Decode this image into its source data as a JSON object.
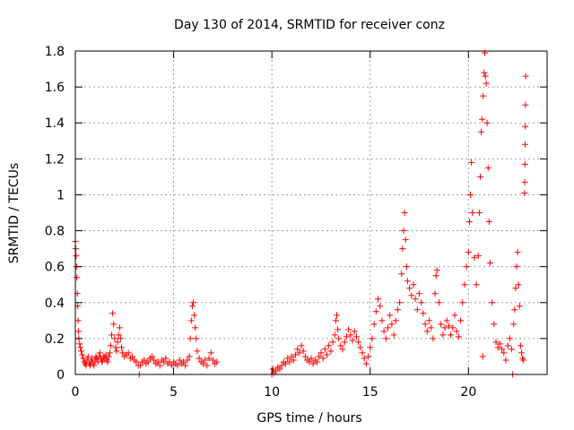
{
  "chart_data": {
    "type": "scatter",
    "title": "Day 130 of 2014, SRMTID for receiver conz",
    "xlabel": "GPS time / hours",
    "ylabel": "SRMTID / TECUs",
    "xlim": [
      0,
      24
    ],
    "ylim": [
      0,
      1.8
    ],
    "x_ticks": [
      0,
      5,
      10,
      15,
      20
    ],
    "x_tick_labels": [
      "0",
      "5",
      "10",
      "15",
      "20"
    ],
    "y_ticks": [
      0,
      0.2,
      0.4,
      0.6,
      0.8,
      1,
      1.2,
      1.4,
      1.6,
      1.8
    ],
    "y_tick_labels": [
      "0",
      "0.2",
      "0.4",
      "0.6",
      "0.8",
      "1",
      "1.2",
      "1.4",
      "1.6",
      "1.8"
    ],
    "grid": true,
    "marker": "+",
    "colors": {
      "series": "#ff0000",
      "grid": "#a0a0a0",
      "axis": "#000000"
    },
    "series": [
      {
        "name": "SRMTID",
        "points": [
          [
            0.0,
            0.74
          ],
          [
            0.02,
            0.7
          ],
          [
            0.04,
            0.66
          ],
          [
            0.06,
            0.6
          ],
          [
            0.08,
            0.54
          ],
          [
            0.1,
            0.45
          ],
          [
            0.12,
            0.38
          ],
          [
            0.14,
            0.3
          ],
          [
            0.16,
            0.24
          ],
          [
            0.18,
            0.2
          ],
          [
            0.22,
            0.17
          ],
          [
            0.26,
            0.15
          ],
          [
            0.3,
            0.13
          ],
          [
            0.35,
            0.11
          ],
          [
            0.4,
            0.09
          ],
          [
            0.45,
            0.07
          ],
          [
            0.5,
            0.06
          ],
          [
            0.55,
            0.05
          ],
          [
            0.6,
            0.08
          ],
          [
            0.65,
            0.1
          ],
          [
            0.7,
            0.06
          ],
          [
            0.75,
            0.05
          ],
          [
            0.8,
            0.07
          ],
          [
            0.85,
            0.09
          ],
          [
            0.9,
            0.06
          ],
          [
            0.95,
            0.05
          ],
          [
            1.0,
            0.08
          ],
          [
            1.05,
            0.1
          ],
          [
            1.1,
            0.09
          ],
          [
            1.15,
            0.07
          ],
          [
            1.2,
            0.1
          ],
          [
            1.25,
            0.12
          ],
          [
            1.3,
            0.09
          ],
          [
            1.35,
            0.07
          ],
          [
            1.4,
            0.08
          ],
          [
            1.45,
            0.1
          ],
          [
            1.5,
            0.09
          ],
          [
            1.55,
            0.11
          ],
          [
            1.6,
            0.08
          ],
          [
            1.65,
            0.07
          ],
          [
            1.7,
            0.1
          ],
          [
            1.75,
            0.12
          ],
          [
            1.8,
            0.16
          ],
          [
            1.85,
            0.22
          ],
          [
            1.9,
            0.34
          ],
          [
            1.95,
            0.28
          ],
          [
            2.0,
            0.2
          ],
          [
            2.05,
            0.15
          ],
          [
            2.1,
            0.13
          ],
          [
            2.15,
            0.18
          ],
          [
            2.2,
            0.22
          ],
          [
            2.25,
            0.26
          ],
          [
            2.3,
            0.2
          ],
          [
            2.35,
            0.15
          ],
          [
            2.4,
            0.12
          ],
          [
            2.5,
            0.1
          ],
          [
            2.6,
            0.11
          ],
          [
            2.7,
            0.12
          ],
          [
            2.8,
            0.09
          ],
          [
            2.9,
            0.1
          ],
          [
            3.0,
            0.08
          ],
          [
            3.1,
            0.07
          ],
          [
            3.2,
            0.05
          ],
          [
            3.25,
            0.0
          ],
          [
            3.3,
            0.05
          ],
          [
            3.4,
            0.07
          ],
          [
            3.5,
            0.08
          ],
          [
            3.6,
            0.06
          ],
          [
            3.7,
            0.07
          ],
          [
            3.8,
            0.09
          ],
          [
            3.9,
            0.1
          ],
          [
            4.0,
            0.08
          ],
          [
            4.1,
            0.06
          ],
          [
            4.2,
            0.07
          ],
          [
            4.3,
            0.05
          ],
          [
            4.4,
            0.08
          ],
          [
            4.5,
            0.07
          ],
          [
            4.6,
            0.09
          ],
          [
            4.7,
            0.06
          ],
          [
            4.8,
            0.07
          ],
          [
            4.9,
            0.05
          ],
          [
            5.0,
            0.07
          ],
          [
            5.1,
            0.06
          ],
          [
            5.2,
            0.05
          ],
          [
            5.3,
            0.08
          ],
          [
            5.4,
            0.06
          ],
          [
            5.5,
            0.07
          ],
          [
            5.6,
            0.05
          ],
          [
            5.7,
            0.08
          ],
          [
            5.8,
            0.1
          ],
          [
            5.85,
            0.2
          ],
          [
            5.9,
            0.3
          ],
          [
            5.95,
            0.38
          ],
          [
            6.0,
            0.4
          ],
          [
            6.05,
            0.33
          ],
          [
            6.1,
            0.26
          ],
          [
            6.15,
            0.2
          ],
          [
            6.2,
            0.13
          ],
          [
            6.3,
            0.09
          ],
          [
            6.4,
            0.07
          ],
          [
            6.5,
            0.06
          ],
          [
            6.6,
            0.08
          ],
          [
            6.7,
            0.05
          ],
          [
            6.8,
            0.09
          ],
          [
            6.9,
            0.12
          ],
          [
            7.0,
            0.08
          ],
          [
            7.1,
            0.06
          ],
          [
            7.2,
            0.07
          ],
          [
            10.0,
            0.0
          ],
          [
            10.05,
            0.03
          ],
          [
            10.1,
            0.01
          ],
          [
            10.2,
            0.02
          ],
          [
            10.3,
            0.04
          ],
          [
            10.4,
            0.03
          ],
          [
            10.5,
            0.05
          ],
          [
            10.6,
            0.07
          ],
          [
            10.7,
            0.06
          ],
          [
            10.8,
            0.09
          ],
          [
            10.9,
            0.07
          ],
          [
            11.0,
            0.1
          ],
          [
            11.1,
            0.08
          ],
          [
            11.2,
            0.11
          ],
          [
            11.3,
            0.14
          ],
          [
            11.4,
            0.12
          ],
          [
            11.5,
            0.16
          ],
          [
            11.6,
            0.13
          ],
          [
            11.7,
            0.1
          ],
          [
            11.8,
            0.08
          ],
          [
            11.9,
            0.07
          ],
          [
            12.0,
            0.09
          ],
          [
            12.1,
            0.06
          ],
          [
            12.2,
            0.08
          ],
          [
            12.3,
            0.07
          ],
          [
            12.4,
            0.1
          ],
          [
            12.5,
            0.12
          ],
          [
            12.6,
            0.09
          ],
          [
            12.7,
            0.14
          ],
          [
            12.8,
            0.11
          ],
          [
            12.9,
            0.16
          ],
          [
            13.0,
            0.13
          ],
          [
            13.1,
            0.18
          ],
          [
            13.2,
            0.22
          ],
          [
            13.25,
            0.3
          ],
          [
            13.3,
            0.33
          ],
          [
            13.35,
            0.25
          ],
          [
            13.4,
            0.2
          ],
          [
            13.5,
            0.16
          ],
          [
            13.6,
            0.14
          ],
          [
            13.7,
            0.18
          ],
          [
            13.8,
            0.21
          ],
          [
            13.9,
            0.25
          ],
          [
            14.0,
            0.22
          ],
          [
            14.1,
            0.19
          ],
          [
            14.2,
            0.24
          ],
          [
            14.3,
            0.21
          ],
          [
            14.4,
            0.18
          ],
          [
            14.5,
            0.15
          ],
          [
            14.6,
            0.12
          ],
          [
            14.7,
            0.09
          ],
          [
            14.8,
            0.06
          ],
          [
            14.9,
            0.1
          ],
          [
            15.0,
            0.15
          ],
          [
            15.1,
            0.2
          ],
          [
            15.2,
            0.28
          ],
          [
            15.3,
            0.35
          ],
          [
            15.4,
            0.42
          ],
          [
            15.5,
            0.38
          ],
          [
            15.6,
            0.3
          ],
          [
            15.7,
            0.24
          ],
          [
            15.8,
            0.2
          ],
          [
            15.9,
            0.26
          ],
          [
            16.0,
            0.33
          ],
          [
            16.1,
            0.28
          ],
          [
            16.2,
            0.22
          ],
          [
            16.3,
            0.3
          ],
          [
            16.4,
            0.36
          ],
          [
            16.5,
            0.4
          ],
          [
            16.6,
            0.56
          ],
          [
            16.65,
            0.7
          ],
          [
            16.7,
            0.8
          ],
          [
            16.75,
            0.9
          ],
          [
            16.8,
            0.75
          ],
          [
            16.85,
            0.6
          ],
          [
            16.9,
            0.52
          ],
          [
            17.0,
            0.48
          ],
          [
            17.1,
            0.44
          ],
          [
            17.2,
            0.5
          ],
          [
            17.3,
            0.42
          ],
          [
            17.4,
            0.36
          ],
          [
            17.5,
            0.45
          ],
          [
            17.6,
            0.4
          ],
          [
            17.7,
            0.34
          ],
          [
            17.8,
            0.28
          ],
          [
            17.9,
            0.24
          ],
          [
            18.0,
            0.3
          ],
          [
            18.1,
            0.26
          ],
          [
            18.2,
            0.2
          ],
          [
            18.3,
            0.45
          ],
          [
            18.35,
            0.55
          ],
          [
            18.4,
            0.58
          ],
          [
            18.5,
            0.4
          ],
          [
            18.6,
            0.28
          ],
          [
            18.7,
            0.22
          ],
          [
            18.8,
            0.26
          ],
          [
            18.9,
            0.3
          ],
          [
            19.0,
            0.27
          ],
          [
            19.1,
            0.22
          ],
          [
            19.2,
            0.26
          ],
          [
            19.3,
            0.33
          ],
          [
            19.4,
            0.24
          ],
          [
            19.5,
            0.21
          ],
          [
            19.6,
            0.3
          ],
          [
            19.7,
            0.4
          ],
          [
            19.8,
            0.5
          ],
          [
            19.9,
            0.6
          ],
          [
            20.0,
            0.68
          ],
          [
            20.05,
            0.85
          ],
          [
            20.1,
            1.0
          ],
          [
            20.15,
            1.18
          ],
          [
            20.2,
            0.9
          ],
          [
            20.3,
            0.65
          ],
          [
            20.4,
            0.5
          ],
          [
            20.5,
            0.66
          ],
          [
            20.55,
            0.9
          ],
          [
            20.6,
            1.1
          ],
          [
            20.65,
            1.35
          ],
          [
            20.7,
            1.42
          ],
          [
            20.72,
            0.1
          ],
          [
            20.75,
            1.55
          ],
          [
            20.8,
            1.68
          ],
          [
            20.83,
            1.79
          ],
          [
            20.86,
            1.66
          ],
          [
            20.9,
            1.62
          ],
          [
            20.95,
            1.4
          ],
          [
            21.0,
            1.15
          ],
          [
            21.05,
            0.85
          ],
          [
            21.1,
            0.62
          ],
          [
            21.2,
            0.4
          ],
          [
            21.3,
            0.28
          ],
          [
            21.4,
            0.18
          ],
          [
            21.5,
            0.15
          ],
          [
            21.6,
            0.17
          ],
          [
            21.7,
            0.14
          ],
          [
            21.8,
            0.12
          ],
          [
            21.9,
            0.08
          ],
          [
            22.0,
            0.16
          ],
          [
            22.1,
            0.2
          ],
          [
            22.2,
            0.14
          ],
          [
            22.25,
            0.0
          ],
          [
            22.3,
            0.28
          ],
          [
            22.35,
            0.36
          ],
          [
            22.4,
            0.48
          ],
          [
            22.45,
            0.6
          ],
          [
            22.5,
            0.68
          ],
          [
            22.55,
            0.5
          ],
          [
            22.6,
            0.38
          ],
          [
            22.65,
            0.16
          ],
          [
            22.7,
            0.12
          ],
          [
            22.75,
            0.09
          ],
          [
            22.8,
            0.08
          ],
          [
            22.85,
            1.01
          ],
          [
            22.86,
            1.07
          ],
          [
            22.87,
            1.17
          ],
          [
            22.88,
            1.28
          ],
          [
            22.89,
            1.38
          ],
          [
            22.9,
            1.5
          ],
          [
            22.91,
            1.66
          ]
        ]
      }
    ]
  }
}
